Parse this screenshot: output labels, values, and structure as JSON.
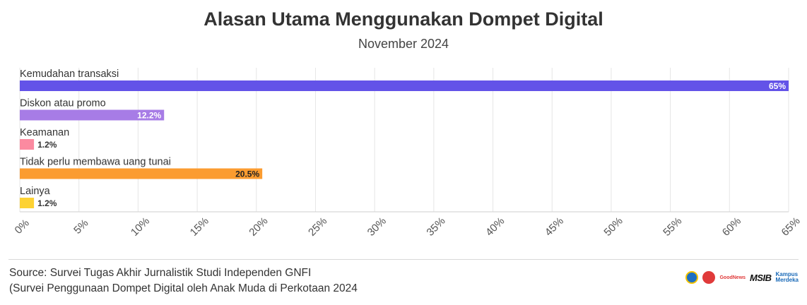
{
  "title": "Alasan Utama Menggunakan Dompet Digital",
  "subtitle": "November 2024",
  "source": {
    "line1": "Source: Survei Tugas Akhir Jurnalistik Studi Independen GNFI",
    "line2": "(Survei Penggunaan Dompet Digital oleh Anak Muda di Perkotaan 2024"
  },
  "logos": {
    "goodnews": "GoodNews",
    "msib": "MSIB",
    "kampus_line1": "Kampus",
    "kampus_line2": "Merdeka"
  },
  "chart_data": {
    "type": "bar",
    "orientation": "horizontal",
    "categories": [
      "Kemudahan transaksi",
      "Diskon atau promo",
      "Keamanan",
      "Tidak perlu membawa uang tunai",
      "Lainya"
    ],
    "values": [
      65,
      12.2,
      1.2,
      20.5,
      1.2
    ],
    "value_labels": [
      "65%",
      "12.2%",
      "1.2%",
      "20.5%",
      "1.2%"
    ],
    "colors": [
      "#6353e8",
      "#a77ce6",
      "#fb8aa0",
      "#fb9c30",
      "#fdd233"
    ],
    "x_ticks": [
      "0%",
      "5%",
      "10%",
      "15%",
      "20%",
      "25%",
      "30%",
      "35%",
      "40%",
      "45%",
      "50%",
      "55%",
      "60%",
      "65%"
    ],
    "xlim": [
      0,
      65
    ],
    "grid": true
  }
}
